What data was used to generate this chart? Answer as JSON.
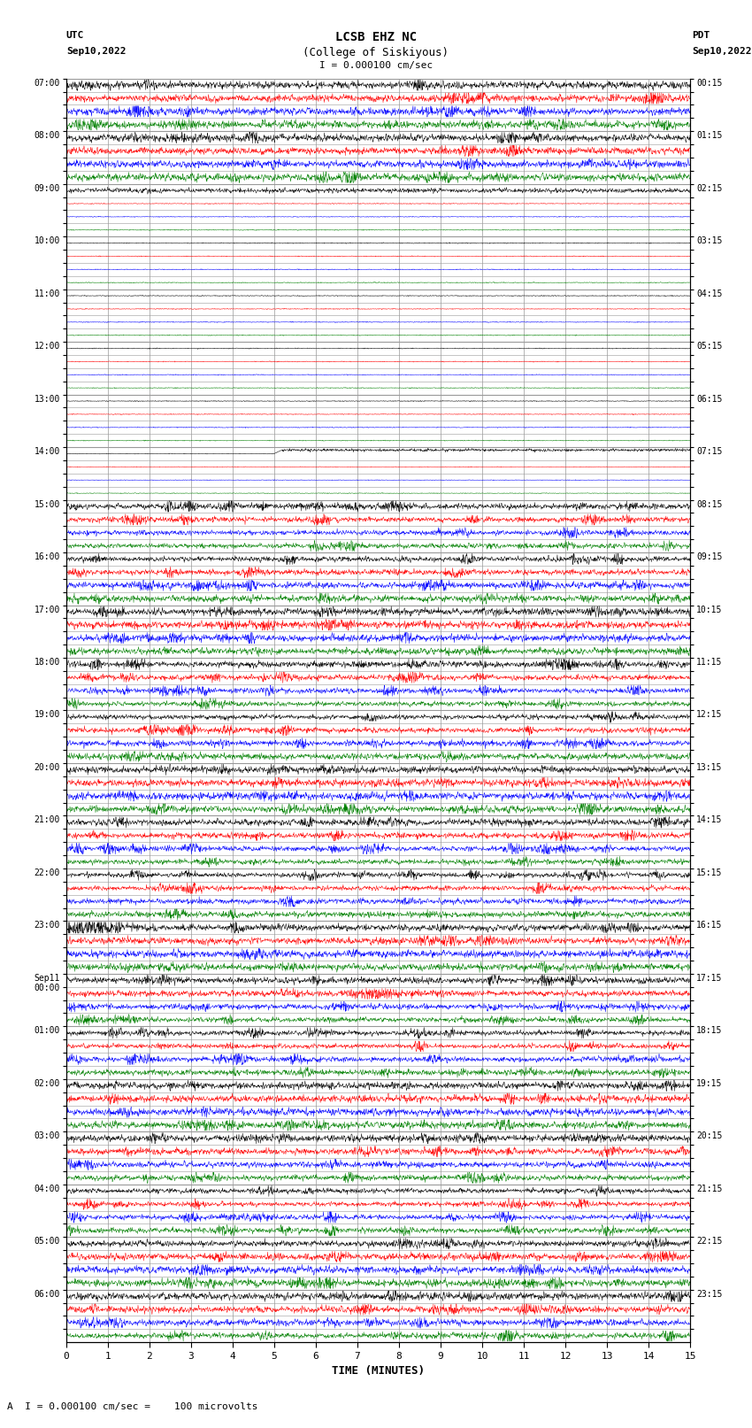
{
  "title_line1": "LCSB EHZ NC",
  "title_line2": "(College of Siskiyous)",
  "scale_label": "I = 0.000100 cm/sec",
  "left_header_line1": "UTC",
  "left_header_line2": "Sep10,2022",
  "right_header_line1": "PDT",
  "right_header_line2": "Sep10,2022",
  "xlabel": "TIME (MINUTES)",
  "footer_label": "A  I = 0.000100 cm/sec =    100 microvolts",
  "utc_labels": [
    "07:00",
    "",
    "",
    "",
    "08:00",
    "",
    "",
    "",
    "09:00",
    "",
    "",
    "",
    "10:00",
    "",
    "",
    "",
    "11:00",
    "",
    "",
    "",
    "12:00",
    "",
    "",
    "",
    "13:00",
    "",
    "",
    "",
    "14:00",
    "",
    "",
    "",
    "15:00",
    "",
    "",
    "",
    "16:00",
    "",
    "",
    "",
    "17:00",
    "",
    "",
    "",
    "18:00",
    "",
    "",
    "",
    "19:00",
    "",
    "",
    "",
    "20:00",
    "",
    "",
    "",
    "21:00",
    "",
    "",
    "",
    "22:00",
    "",
    "",
    "",
    "23:00",
    "",
    "",
    "",
    "Sep11\n00:00",
    "",
    "",
    "",
    "01:00",
    "",
    "",
    "",
    "02:00",
    "",
    "",
    "",
    "03:00",
    "",
    "",
    "",
    "04:00",
    "",
    "",
    "",
    "05:00",
    "",
    "",
    "",
    "06:00",
    "",
    "",
    ""
  ],
  "pdt_labels": [
    "00:15",
    "",
    "",
    "",
    "01:15",
    "",
    "",
    "",
    "02:15",
    "",
    "",
    "",
    "03:15",
    "",
    "",
    "",
    "04:15",
    "",
    "",
    "",
    "05:15",
    "",
    "",
    "",
    "06:15",
    "",
    "",
    "",
    "07:15",
    "",
    "",
    "",
    "08:15",
    "",
    "",
    "",
    "09:15",
    "",
    "",
    "",
    "10:15",
    "",
    "",
    "",
    "11:15",
    "",
    "",
    "",
    "12:15",
    "",
    "",
    "",
    "13:15",
    "",
    "",
    "",
    "14:15",
    "",
    "",
    "",
    "15:15",
    "",
    "",
    "",
    "16:15",
    "",
    "",
    "",
    "17:15",
    "",
    "",
    "",
    "18:15",
    "",
    "",
    "",
    "19:15",
    "",
    "",
    "",
    "20:15",
    "",
    "",
    "",
    "21:15",
    "",
    "",
    "",
    "22:15",
    "",
    "",
    "",
    "23:15",
    "",
    "",
    ""
  ],
  "num_rows": 96,
  "x_ticks": [
    0,
    1,
    2,
    3,
    4,
    5,
    6,
    7,
    8,
    9,
    10,
    11,
    12,
    13,
    14,
    15
  ],
  "colors_cycle": [
    "black",
    "red",
    "blue",
    "green"
  ],
  "grid_color": "#999999",
  "green_bar_color": "#006600",
  "trace_amp_active": 0.42,
  "trace_amp_quiet": 0.08,
  "trace_amp_calibration": 0.42
}
